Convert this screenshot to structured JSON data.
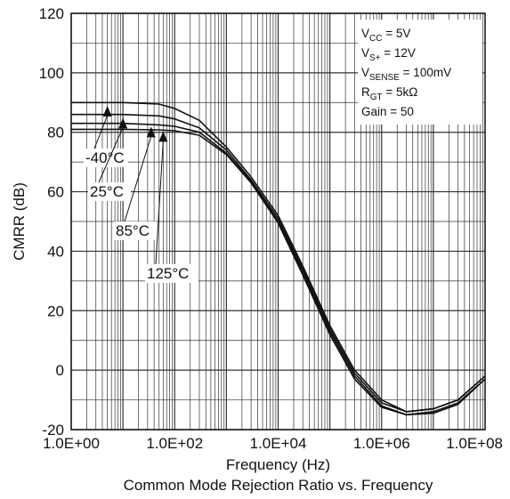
{
  "chart_data": {
    "type": "line",
    "title": "Common Mode Rejection Ratio vs. Frequency",
    "xlabel": "Frequency (Hz)",
    "ylabel": "CMRR (dB)",
    "xscale": "log",
    "xlim": [
      1,
      100000000
    ],
    "ylim": [
      -20,
      120
    ],
    "grid": true,
    "x_tick_labels": [
      "1.0E+00",
      "1.0E+02",
      "1.0E+04",
      "1.0E+06",
      "1.0E+08"
    ],
    "x_tick_values": [
      1,
      100,
      10000,
      1000000,
      100000000
    ],
    "y_ticks": [
      -20,
      0,
      20,
      40,
      60,
      80,
      100,
      120
    ],
    "conditions": [
      {
        "main": "V",
        "sub": "CC",
        "rest": " = 5V"
      },
      {
        "main": "V",
        "sub": "S+",
        "rest": " = 12V"
      },
      {
        "main": "V",
        "sub": "SENSE",
        "rest": " = 100mV"
      },
      {
        "main": "R",
        "sub": "GT",
        "rest": " = 5kΩ"
      },
      {
        "main": "Gain = 50",
        "sub": "",
        "rest": ""
      }
    ],
    "series": [
      {
        "name": "-40°C",
        "x": [
          1,
          10,
          50,
          100,
          300,
          1000,
          3000,
          10000,
          30000,
          100000,
          300000,
          1000000,
          3000000,
          10000000,
          30000000,
          100000000
        ],
        "y": [
          90,
          90,
          89.5,
          88,
          84,
          75,
          65,
          52,
          35,
          15,
          0,
          -10,
          -14,
          -13,
          -10,
          -2
        ]
      },
      {
        "name": "25°C",
        "x": [
          1,
          10,
          50,
          100,
          300,
          1000,
          3000,
          10000,
          30000,
          100000,
          300000,
          1000000,
          3000000,
          10000000,
          30000000,
          100000000
        ],
        "y": [
          86,
          86,
          85.5,
          84.5,
          81.5,
          74,
          64,
          51,
          34,
          14,
          -1,
          -11,
          -14,
          -13,
          -10,
          -2
        ]
      },
      {
        "name": "85°C",
        "x": [
          1,
          10,
          50,
          100,
          300,
          1000,
          3000,
          10000,
          30000,
          100000,
          300000,
          1000000,
          3000000,
          10000000,
          30000000,
          100000000
        ],
        "y": [
          83,
          83,
          82.5,
          82,
          80,
          73,
          63.5,
          50,
          33,
          13,
          -2,
          -12,
          -15,
          -14,
          -11,
          -3
        ]
      },
      {
        "name": "125°C",
        "x": [
          1,
          10,
          50,
          100,
          300,
          1000,
          3000,
          10000,
          30000,
          100000,
          300000,
          1000000,
          3000000,
          10000000,
          30000000,
          100000000
        ],
        "y": [
          81,
          81,
          80.8,
          80.5,
          79,
          72.5,
          63,
          49.5,
          32,
          12,
          -3,
          -12.5,
          -15,
          -14.5,
          -11.5,
          -3
        ]
      }
    ],
    "curve_labels": [
      {
        "text": "-40°C",
        "arrow_x": 5,
        "arrow_y": 88
      },
      {
        "text": "25°C",
        "arrow_x": 10,
        "arrow_y": 84
      },
      {
        "text": "85°C",
        "arrow_x": 35,
        "arrow_y": 81
      },
      {
        "text": "125°C",
        "arrow_x": 60,
        "arrow_y": 79.5
      }
    ]
  }
}
